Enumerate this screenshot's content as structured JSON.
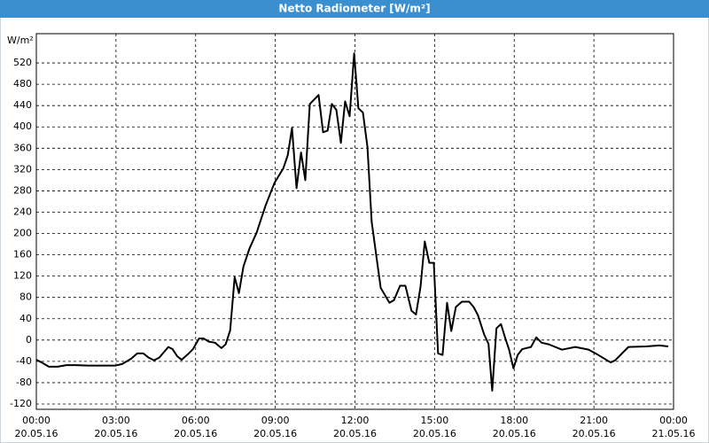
{
  "chart_data": {
    "type": "line",
    "title": "Netto Radiometer [W/m²]",
    "y_label": "W/m²",
    "x": [
      0,
      0.2,
      0.47,
      0.8,
      1.13,
      1.47,
      1.97,
      2.97,
      3.23,
      3.57,
      3.8,
      4.03,
      4.23,
      4.43,
      4.63,
      4.97,
      5.13,
      5.3,
      5.47,
      5.7,
      5.9,
      6.13,
      6.3,
      6.5,
      6.73,
      6.97,
      7.13,
      7.3,
      7.47,
      7.63,
      7.8,
      8.03,
      8.3,
      8.63,
      8.97,
      9.3,
      9.47,
      9.63,
      9.8,
      9.97,
      10.13,
      10.3,
      10.63,
      10.8,
      10.97,
      11.13,
      11.3,
      11.47,
      11.63,
      11.8,
      11.97,
      12.13,
      12.3,
      12.47,
      12.63,
      12.97,
      13.3,
      13.47,
      13.7,
      13.9,
      14.13,
      14.3,
      14.47,
      14.63,
      14.8,
      14.97,
      15.13,
      15.3,
      15.47,
      15.63,
      15.8,
      16.03,
      16.3,
      16.47,
      16.63,
      16.87,
      17.03,
      17.17,
      17.33,
      17.5,
      17.67,
      17.8,
      17.97,
      18.13,
      18.3,
      18.63,
      18.83,
      19.03,
      19.3,
      19.8,
      20.3,
      20.8,
      21.13,
      21.63,
      21.8,
      22.3,
      22.97,
      23.47,
      23.8
    ],
    "series": [
      {
        "name": "Netto Radiometer",
        "color": "#000000",
        "values": [
          -37,
          -42,
          -50,
          -50,
          -47,
          -47,
          -48,
          -48,
          -45,
          -35,
          -25,
          -25,
          -33,
          -38,
          -33,
          -13,
          -17,
          -30,
          -37,
          -27,
          -17,
          3,
          3,
          -3,
          -5,
          -15,
          -8,
          18,
          118,
          88,
          138,
          172,
          202,
          252,
          295,
          322,
          347,
          398,
          285,
          352,
          300,
          443,
          460,
          390,
          393,
          443,
          432,
          370,
          448,
          420,
          538,
          435,
          427,
          363,
          222,
          98,
          70,
          75,
          102,
          102,
          55,
          48,
          100,
          185,
          145,
          145,
          -25,
          -28,
          70,
          17,
          62,
          72,
          72,
          62,
          47,
          10,
          -7,
          -95,
          22,
          30,
          2,
          -17,
          -53,
          -28,
          -17,
          -13,
          5,
          -5,
          -8,
          -18,
          -13,
          -18,
          -27,
          -42,
          -38,
          -13,
          -12,
          -10,
          -12
        ]
      }
    ],
    "xlim": [
      0,
      24
    ],
    "xticks": [
      {
        "value": 0,
        "label": "00:00",
        "date": "20.05.16"
      },
      {
        "value": 3,
        "label": "03:00",
        "date": "20.05.16"
      },
      {
        "value": 6,
        "label": "06:00",
        "date": "20.05.16"
      },
      {
        "value": 9,
        "label": "09:00",
        "date": "20.05.16"
      },
      {
        "value": 12,
        "label": "12:00",
        "date": "20.05.16"
      },
      {
        "value": 15,
        "label": "15:00",
        "date": "20.05.16"
      },
      {
        "value": 18,
        "label": "18:00",
        "date": "20.05.16"
      },
      {
        "value": 21,
        "label": "21:00",
        "date": "20.05.16"
      },
      {
        "value": 24,
        "label": "00:00",
        "date": "21.05.16"
      }
    ],
    "ylim": [
      -130,
      575
    ],
    "yticks": [
      -120,
      -80,
      -40,
      0,
      40,
      80,
      120,
      160,
      200,
      240,
      280,
      320,
      360,
      400,
      440,
      480,
      520
    ],
    "grid": true
  }
}
